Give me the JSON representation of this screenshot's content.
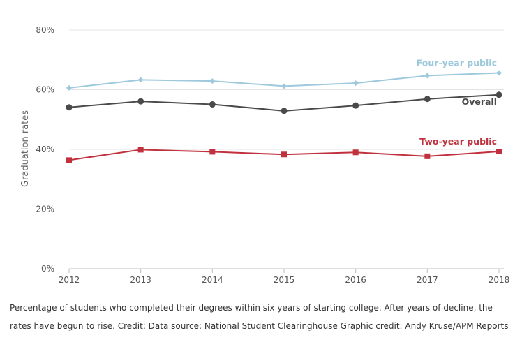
{
  "chart_data": {
    "type": "line",
    "title": "",
    "xlabel": "",
    "ylabel": "Graduation rates",
    "x": [
      "2012",
      "2013",
      "2014",
      "2015",
      "2016",
      "2017",
      "2018"
    ],
    "ylim": [
      0,
      80
    ],
    "yticks": [
      0,
      20,
      40,
      60,
      80
    ],
    "ytick_labels": [
      "0%",
      "20%",
      "40%",
      "60%",
      "80%"
    ],
    "grid": true,
    "legend": "inline labels at right end of each line",
    "series": [
      {
        "name": "Four-year public",
        "color": "#9ec9dc",
        "marker": "diamond",
        "values": [
          60.6,
          63.3,
          62.9,
          61.2,
          62.2,
          64.7,
          65.6
        ]
      },
      {
        "name": "Overall",
        "color": "#4a4a4a",
        "marker": "circle",
        "values": [
          54.1,
          56.1,
          55.1,
          52.9,
          54.7,
          56.9,
          58.3
        ]
      },
      {
        "name": "Two-year public",
        "color": "#c0313d",
        "marker": "square",
        "values": [
          36.4,
          39.9,
          39.2,
          38.3,
          39.0,
          37.7,
          39.3
        ]
      }
    ]
  },
  "caption": {
    "text": "Percentage of students who completed their degrees within six years of starting college. After years of decline, the rates have begun to rise. Credit: Data source: National Student Clearinghouse  Graphic credit: Andy Kruse/APM Reports"
  }
}
